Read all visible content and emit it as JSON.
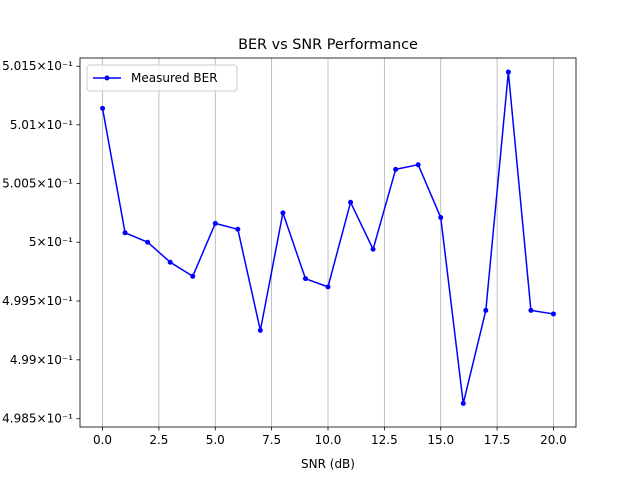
{
  "chart_data": {
    "type": "line",
    "title": "BER vs SNR Performance",
    "xlabel": "SNR (dB)",
    "ylabel": "",
    "xlim": [
      -1.0,
      21.0
    ],
    "ylim": [
      0.49843,
      0.50157
    ],
    "x_scale": "linear",
    "y_scale": "log",
    "grid": "x-only",
    "legend_position": "top-left",
    "x_ticks": [
      0.0,
      2.5,
      5.0,
      7.5,
      10.0,
      12.5,
      15.0,
      17.5,
      20.0
    ],
    "x_tick_labels": [
      "0.0",
      "2.5",
      "5.0",
      "7.5",
      "10.0",
      "12.5",
      "15.0",
      "17.5",
      "20.0"
    ],
    "y_ticks": [
      0.4985,
      0.499,
      0.4995,
      0.5,
      0.5005,
      0.501,
      0.5015
    ],
    "y_tick_labels": [
      "4.985×10⁻¹",
      "4.99×10⁻¹",
      "4.995×10⁻¹",
      "5×10⁻¹",
      "5.005×10⁻¹",
      "5.01×10⁻¹",
      "5.015×10⁻¹"
    ],
    "series": [
      {
        "name": "Measured BER",
        "color": "#0000ff",
        "marker": "circle",
        "x": [
          0,
          1,
          2,
          3,
          4,
          5,
          6,
          7,
          8,
          9,
          10,
          11,
          12,
          13,
          14,
          15,
          16,
          17,
          18,
          19,
          20
        ],
        "values": [
          0.50114,
          0.50008,
          0.5,
          0.49983,
          0.49971,
          0.50016,
          0.50011,
          0.49925,
          0.50025,
          0.49969,
          0.49962,
          0.50034,
          0.49994,
          0.50062,
          0.50066,
          0.50021,
          0.49863,
          0.49942,
          0.50145,
          0.49942,
          0.49939
        ]
      }
    ]
  }
}
